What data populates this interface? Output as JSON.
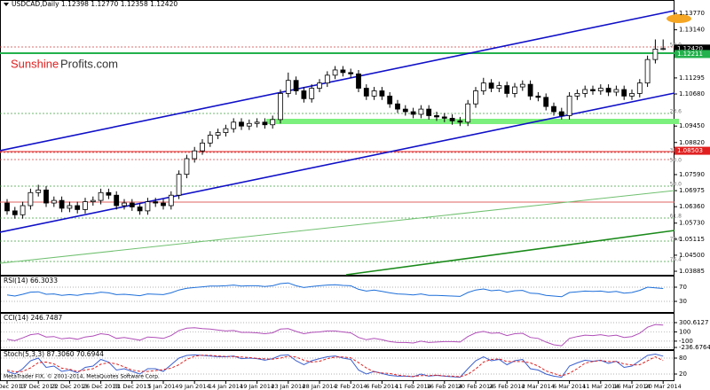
{
  "chart_data": [
    {
      "type": "candlestick",
      "title": "USDCAD,Daily 1.12398 1.12770 1.12358 1.12420",
      "watermark": [
        "Sunshine",
        "Profits.com"
      ],
      "categories": [
        "12 Dec 2013",
        null,
        null,
        null,
        "17 Dec 2013",
        null,
        null,
        null,
        "22 Dec 2013",
        null,
        null,
        null,
        "26 Dec 2013",
        null,
        null,
        null,
        "31 Dec 2013",
        null,
        null,
        null,
        "5 Jan 2014",
        null,
        null,
        null,
        "9 Jan 2014",
        null,
        null,
        null,
        "14 Jan 2014",
        null,
        null,
        null,
        "19 Jan 2014",
        null,
        null,
        null,
        "23 Jan 2014",
        null,
        null,
        null,
        "28 Jan 2014",
        null,
        null,
        null,
        "2 Feb 2014",
        null,
        null,
        null,
        "6 Feb 2014",
        null,
        null,
        null,
        "11 Feb 2014",
        null,
        null,
        null,
        "16 Feb 2014",
        null,
        null,
        null,
        "20 Feb 2014",
        null,
        null,
        null,
        "25 Feb 2014",
        null,
        null,
        null,
        "2 Mar 2014",
        null,
        null,
        null,
        "6 Mar 2014",
        null,
        null,
        null,
        "11 Mar 2014",
        null,
        null,
        null,
        "16 Mar 2014",
        null,
        null,
        null,
        "20 Mar 2014"
      ],
      "open": [
        1.065,
        1.062,
        1.0605,
        1.064,
        1.069,
        1.07,
        1.065,
        1.066,
        1.063,
        1.064,
        1.0625,
        1.0655,
        1.066,
        1.069,
        1.068,
        1.064,
        1.065,
        1.0635,
        1.062,
        1.0655,
        1.065,
        1.064,
        1.068,
        1.076,
        1.082,
        1.085,
        1.088,
        1.091,
        1.092,
        1.0935,
        1.096,
        1.0945,
        1.0955,
        1.096,
        1.095,
        1.097,
        1.107,
        1.112,
        1.108,
        1.105,
        1.109,
        1.111,
        1.114,
        1.116,
        1.115,
        1.1145,
        1.109,
        1.106,
        1.108,
        1.106,
        1.103,
        1.101,
        1.1,
        1.099,
        1.101,
        1.0985,
        1.098,
        1.0975,
        1.0965,
        1.096,
        1.103,
        1.108,
        1.111,
        1.109,
        1.11,
        1.107,
        1.1095,
        1.1105,
        1.106,
        1.1055,
        1.102,
        1.1,
        1.0985,
        1.106,
        1.107,
        1.1085,
        1.108,
        1.109,
        1.1075,
        1.1085,
        1.106,
        1.107,
        1.111,
        1.12,
        1.12398
      ],
      "high": [
        1.0665,
        1.0635,
        1.0655,
        1.0705,
        1.072,
        1.0715,
        1.0675,
        1.0675,
        1.0655,
        1.0655,
        1.067,
        1.0675,
        1.0705,
        1.0705,
        1.0695,
        1.0665,
        1.0665,
        1.065,
        1.067,
        1.067,
        1.0665,
        1.0695,
        1.0775,
        1.0835,
        1.0865,
        1.0895,
        1.0925,
        1.0935,
        1.095,
        1.0975,
        1.0975,
        1.097,
        1.0975,
        1.0975,
        1.0985,
        1.1085,
        1.115,
        1.1135,
        1.1095,
        1.1105,
        1.1125,
        1.1155,
        1.1175,
        1.1175,
        1.1165,
        1.116,
        1.1105,
        1.1095,
        1.1095,
        1.1075,
        1.1045,
        1.1025,
        1.1015,
        1.1025,
        1.1025,
        1.1,
        1.0995,
        1.099,
        1.098,
        1.1045,
        1.1095,
        1.113,
        1.1125,
        1.1115,
        1.1115,
        1.111,
        1.112,
        1.112,
        1.1075,
        1.107,
        1.1035,
        1.1015,
        1.1075,
        1.1085,
        1.11,
        1.11,
        1.1105,
        1.1105,
        1.11,
        1.11,
        1.1085,
        1.1125,
        1.1215,
        1.1277,
        1.1277
      ],
      "low": [
        1.0605,
        1.059,
        1.059,
        1.0625,
        1.0675,
        1.0635,
        1.0635,
        1.0615,
        1.0615,
        1.061,
        1.061,
        1.064,
        1.0645,
        1.0665,
        1.0625,
        1.0625,
        1.062,
        1.0605,
        1.0605,
        1.0635,
        1.0625,
        1.0625,
        1.0665,
        1.0745,
        1.0805,
        1.0835,
        1.0865,
        1.0895,
        1.0905,
        1.092,
        1.093,
        1.093,
        1.094,
        1.0935,
        1.0935,
        1.0955,
        1.1055,
        1.1065,
        1.1035,
        1.1035,
        1.1075,
        1.1095,
        1.1125,
        1.1135,
        1.113,
        1.1075,
        1.1045,
        1.1045,
        1.1045,
        1.1015,
        1.0995,
        1.0985,
        1.0975,
        1.0975,
        1.097,
        1.0965,
        1.096,
        1.095,
        1.0945,
        1.0945,
        1.1015,
        1.1065,
        1.1075,
        1.1075,
        1.1055,
        1.1055,
        1.108,
        1.1045,
        1.104,
        1.1005,
        1.0985,
        1.097,
        1.097,
        1.1045,
        1.1055,
        1.1065,
        1.1065,
        1.106,
        1.106,
        1.1045,
        1.1045,
        1.1055,
        1.1095,
        1.1185,
        1.12358
      ],
      "close": [
        1.062,
        1.0605,
        1.064,
        1.069,
        1.07,
        1.065,
        1.066,
        1.063,
        1.064,
        1.0625,
        1.0655,
        1.066,
        1.069,
        1.068,
        1.064,
        1.065,
        1.0635,
        1.062,
        1.0655,
        1.065,
        1.064,
        1.068,
        1.076,
        1.082,
        1.085,
        1.088,
        1.091,
        1.092,
        1.0935,
        1.096,
        1.0945,
        1.0955,
        1.096,
        1.095,
        1.097,
        1.107,
        1.112,
        1.108,
        1.105,
        1.109,
        1.111,
        1.114,
        1.116,
        1.115,
        1.1145,
        1.109,
        1.106,
        1.108,
        1.106,
        1.103,
        1.101,
        1.1,
        1.099,
        1.101,
        1.0985,
        1.098,
        1.0975,
        1.0965,
        1.096,
        1.103,
        1.108,
        1.111,
        1.109,
        1.11,
        1.107,
        1.1095,
        1.1105,
        1.106,
        1.1055,
        1.102,
        1.1,
        1.0985,
        1.106,
        1.107,
        1.1085,
        1.108,
        1.109,
        1.1075,
        1.1085,
        1.106,
        1.107,
        1.111,
        1.12,
        1.124,
        1.1242
      ],
      "up_color": "#ffffff",
      "down_color": "#000000",
      "edge_color": "#000000",
      "ylim": [
        1.0375,
        1.1401
      ],
      "yticks": [
        {
          "value": 1.1377,
          "label": "1.13770"
        },
        {
          "value": 1.1314,
          "label": "1.13140"
        },
        {
          "value": 1.11295,
          "label": "1.11295"
        },
        {
          "value": 1.1068,
          "label": "1.10680"
        },
        {
          "value": 1.0945,
          "label": "1.09450"
        },
        {
          "value": 1.0882,
          "label": "1.08820"
        },
        {
          "value": 1.0759,
          "label": "1.07590"
        },
        {
          "value": 1.06975,
          "label": "1.06975"
        },
        {
          "value": 1.0636,
          "label": "1.06360"
        },
        {
          "value": 1.0573,
          "label": "1.05730"
        },
        {
          "value": 1.05115,
          "label": "1.05115"
        },
        {
          "value": 1.045,
          "label": "1.04500"
        },
        {
          "value": 1.03885,
          "label": "1.03885"
        }
      ],
      "markers": [
        {
          "value": 1.1242,
          "label": "1.12420",
          "color": "#000000"
        },
        {
          "value": 1.12211,
          "label": "1.12211",
          "color": "#22b14c"
        },
        {
          "value": 1.08503,
          "label": "1.08503",
          "color": "#e02020"
        }
      ],
      "fib_labels": [
        "50.0",
        "23.6",
        "38.2",
        "50.0",
        "50.0",
        "61.8",
        "78.6",
        "76.4"
      ]
    },
    {
      "type": "line",
      "title": "RSI(14) 66.3033",
      "color": "#1e6fd9",
      "ylim": [
        0,
        100
      ],
      "yticks": [
        70,
        30
      ],
      "values": [
        48,
        45,
        50,
        56,
        57,
        50,
        51,
        47,
        49,
        47,
        51,
        52,
        56,
        54,
        49,
        50,
        48,
        46,
        51,
        50,
        49,
        54,
        62,
        67,
        69,
        71,
        73,
        73,
        74,
        76,
        73,
        74,
        74,
        72,
        74,
        80,
        82,
        74,
        69,
        72,
        74,
        76,
        77,
        75,
        74,
        64,
        59,
        62,
        58,
        54,
        51,
        50,
        48,
        51,
        47,
        47,
        46,
        45,
        44,
        55,
        62,
        65,
        60,
        62,
        56,
        60,
        61,
        53,
        52,
        47,
        45,
        43,
        55,
        57,
        59,
        58,
        59,
        56,
        58,
        53,
        55,
        61,
        70,
        68,
        66.3
      ]
    },
    {
      "type": "line",
      "title": "CCI(14) 246.7487",
      "color": "#b04fb8",
      "ylim": [
        -236.6764,
        300.6127
      ],
      "yticks": [
        300.6127,
        100,
        -100,
        -236.6764
      ],
      "values": [
        -60,
        -90,
        -30,
        40,
        60,
        -10,
        0,
        -50,
        -30,
        -60,
        -10,
        10,
        60,
        40,
        -40,
        -20,
        -50,
        -80,
        -10,
        -20,
        -40,
        20,
        130,
        180,
        190,
        170,
        160,
        140,
        120,
        130,
        90,
        90,
        80,
        60,
        80,
        160,
        170,
        110,
        60,
        90,
        100,
        120,
        120,
        100,
        80,
        -20,
        -70,
        -40,
        -70,
        -110,
        -130,
        -130,
        -140,
        -100,
        -130,
        -120,
        -110,
        -110,
        -120,
        0,
        80,
        110,
        70,
        80,
        20,
        60,
        70,
        -20,
        -40,
        -120,
        -180,
        -200,
        -40,
        0,
        30,
        20,
        40,
        10,
        30,
        -20,
        0,
        70,
        200,
        260,
        246.7
      ]
    },
    {
      "type": "line",
      "title": "Stoch(5,3,3) 87.3060 70.6944",
      "copyright": "MetaTrader FIX, © 2001-2014, MetaQuotes Software Corp.",
      "ylim": [
        0,
        100
      ],
      "yticks": [
        80,
        20
      ],
      "series": [
        {
          "color": "#3a5fcd",
          "dashed": false,
          "values": [
            30,
            20,
            40,
            70,
            80,
            45,
            50,
            30,
            35,
            25,
            45,
            50,
            75,
            65,
            35,
            40,
            30,
            20,
            40,
            40,
            30,
            55,
            80,
            90,
            92,
            90,
            88,
            85,
            85,
            88,
            78,
            80,
            78,
            72,
            78,
            90,
            92,
            70,
            55,
            70,
            78,
            85,
            88,
            80,
            75,
            35,
            20,
            30,
            22,
            15,
            12,
            12,
            10,
            20,
            12,
            15,
            12,
            10,
            8,
            40,
            70,
            85,
            70,
            75,
            55,
            70,
            75,
            40,
            35,
            20,
            12,
            8,
            50,
            62,
            72,
            68,
            72,
            60,
            68,
            45,
            50,
            70,
            90,
            95,
            87.3
          ]
        },
        {
          "color": "#e02020",
          "dashed": true,
          "values": [
            35,
            28,
            30,
            43,
            63,
            65,
            58,
            42,
            38,
            30,
            35,
            40,
            57,
            63,
            58,
            47,
            35,
            30,
            30,
            33,
            37,
            42,
            55,
            75,
            87,
            91,
            90,
            88,
            86,
            86,
            84,
            82,
            79,
            77,
            76,
            80,
            87,
            84,
            72,
            65,
            68,
            78,
            84,
            84,
            81,
            63,
            43,
            28,
            24,
            22,
            16,
            13,
            11,
            14,
            14,
            16,
            13,
            12,
            10,
            19,
            39,
            65,
            75,
            77,
            67,
            67,
            67,
            62,
            50,
            32,
            22,
            13,
            23,
            40,
            61,
            67,
            71,
            67,
            67,
            58,
            54,
            55,
            70,
            85,
            70.7
          ]
        }
      ]
    }
  ]
}
